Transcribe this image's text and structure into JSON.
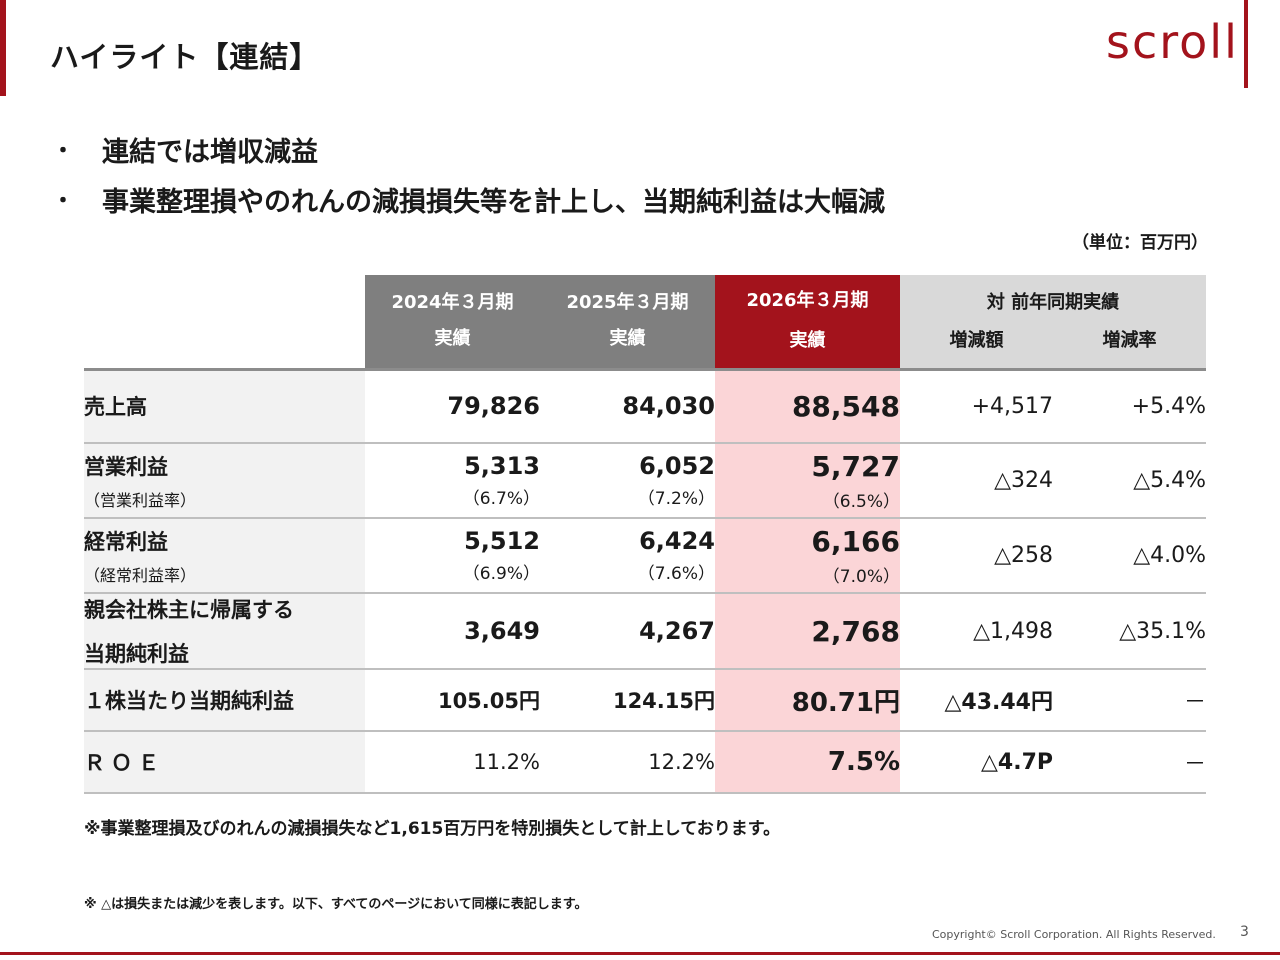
{
  "page": {
    "title": "ハイライト【連結】",
    "logo": "scroll",
    "bullets": [
      "連結では増収減益",
      "事業整理損やのれんの減損損失等を計上し、当期純利益は大幅減"
    ],
    "bullet_mark": "・",
    "unit": "（単位：百万円）",
    "note1": "※事業整理損及びのれんの減損損失など1,615百万円を特別損失として計上しております。",
    "note2": "※ △は損失または減少を表します。以下、すべてのページにおいて同様に表記します。",
    "copyright": "Copyright© Scroll Corporation. All Rights Reserved.",
    "page_number": "3"
  },
  "table": {
    "headers": {
      "fy2024": {
        "line1": "2024年３月期",
        "line2": "実績"
      },
      "fy2025": {
        "line1": "2025年３月期",
        "line2": "実績"
      },
      "fy2026": {
        "line1": "2026年３月期",
        "line2": "実績"
      },
      "yoy": {
        "title": "対 前年同期実績",
        "change": "増減額",
        "rate": "増減率"
      }
    },
    "rows": [
      {
        "label": "売上高",
        "sub": "",
        "fy2024": "79,826",
        "fy2025": "84,030",
        "fy2026": "88,548",
        "r2024": "",
        "r2025": "",
        "r2026": "",
        "change": "+4,517",
        "rate": "+5.4%"
      },
      {
        "label": "営業利益",
        "sub": "（営業利益率）",
        "fy2024": "5,313",
        "fy2025": "6,052",
        "fy2026": "5,727",
        "r2024": "（6.7%）",
        "r2025": "（7.2%）",
        "r2026": "（6.5%）",
        "change": "△324",
        "rate": "△5.4%"
      },
      {
        "label": "経常利益",
        "sub": "（経常利益率）",
        "fy2024": "5,512",
        "fy2025": "6,424",
        "fy2026": "6,166",
        "r2024": "（6.9%）",
        "r2025": "（7.6%）",
        "r2026": "（7.0%）",
        "change": "△258",
        "rate": "△4.0%"
      },
      {
        "label": "親会社株主に帰属する",
        "sub": "当期純利益",
        "fy2024": "3,649",
        "fy2025": "4,267",
        "fy2026": "2,768",
        "r2024": "",
        "r2025": "",
        "r2026": "",
        "change": "△1,498",
        "rate": "△35.1%"
      },
      {
        "label": "１株当たり当期純利益",
        "sub": "",
        "fy2024": "105.05円",
        "fy2025": "124.15円",
        "fy2026": "80.71円",
        "r2024": "",
        "r2025": "",
        "r2026": "",
        "change": "△43.44円",
        "rate": "－"
      },
      {
        "label": "ＲＯＥ",
        "sub": "",
        "fy2024": "11.2%",
        "fy2025": "12.2%",
        "fy2026": "7.5%",
        "r2024": "",
        "r2025": "",
        "r2026": "",
        "change": "△4.7P",
        "rate": "－"
      }
    ]
  },
  "colors": {
    "accent": "#a3131c",
    "highlight": "#fbd5d7",
    "header_gray": "#7f7f7f",
    "header_light": "#d9d9d9"
  }
}
